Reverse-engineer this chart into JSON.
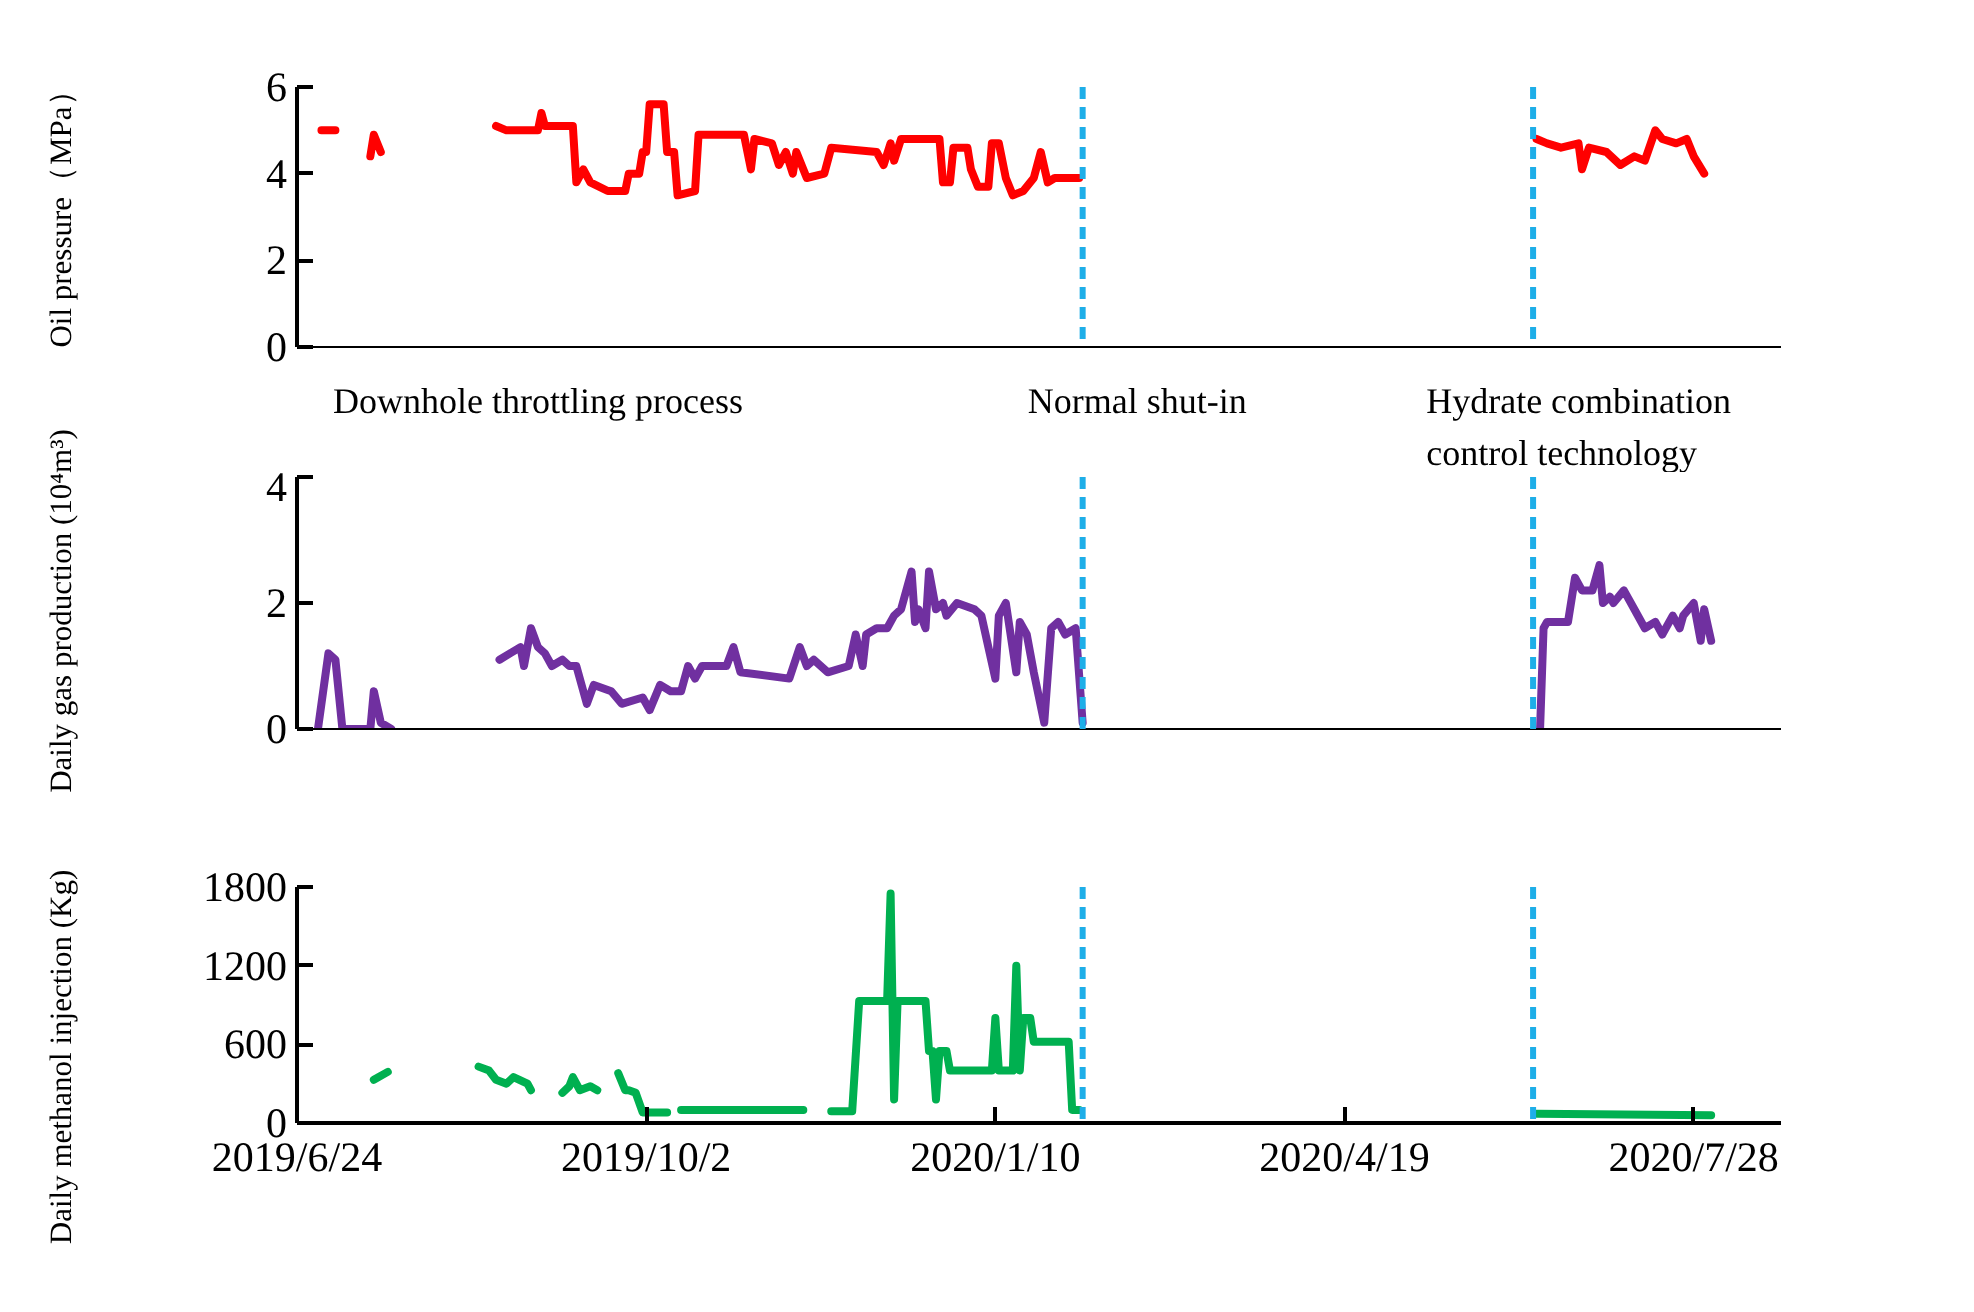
{
  "chart_data": [
    {
      "type": "line",
      "ylabel": "Oil pressure（MPa）",
      "xlim": [
        "2019-06-24",
        "2020-08-22"
      ],
      "ylim": [
        0,
        6
      ],
      "yticks": [
        0,
        2,
        4,
        6
      ],
      "tick_labels": "y",
      "ref_lines": [
        {
          "axis": "x",
          "value": "2020-02-04",
          "color": "#1eaee8",
          "line_style": "dashed"
        },
        {
          "axis": "x",
          "value": "2020-06-12",
          "color": "#1eaee8",
          "line_style": "dashed"
        }
      ],
      "annotations": [
        "Downhole throttling process",
        "Normal shut-in",
        "Hydrate combination control technology"
      ],
      "series": [
        {
          "color": "#ff0000",
          "x": [
            "2019-07-01",
            "2019-07-05",
            "2019-07-09",
            "2019-07-15",
            "2019-07-16",
            "2019-07-18",
            "2019-08-03",
            "2019-08-20",
            "2019-08-23",
            "2019-09-01",
            "2019-09-02",
            "2019-09-03",
            "2019-09-11",
            "2019-09-12",
            "2019-09-14",
            "2019-09-16",
            "2019-09-21",
            "2019-09-26",
            "2019-09-27",
            "2019-09-30",
            "2019-10-01",
            "2019-10-02",
            "2019-10-03",
            "2019-10-07",
            "2019-10-08",
            "2019-10-10",
            "2019-10-11",
            "2019-10-16",
            "2019-10-17",
            "2019-10-30",
            "2019-11-01",
            "2019-11-02",
            "2019-11-07",
            "2019-11-09",
            "2019-11-11",
            "2019-11-13",
            "2019-11-14",
            "2019-11-17",
            "2019-11-22",
            "2019-11-24",
            "2019-12-07",
            "2019-12-09",
            "2019-12-11",
            "2019-12-12",
            "2019-12-14",
            "2019-12-25",
            "2019-12-26",
            "2019-12-28",
            "2019-12-29",
            "2020-01-02",
            "2020-01-03",
            "2020-01-05",
            "2020-01-08",
            "2020-01-09",
            "2020-01-11",
            "2020-01-13",
            "2020-01-15",
            "2020-01-18",
            "2020-01-21",
            "2020-01-23",
            "2020-01-25",
            "2020-01-27",
            "2020-02-03",
            "2020-04-19",
            "2020-06-13",
            "2020-06-16",
            "2020-06-20",
            "2020-06-25",
            "2020-06-26",
            "2020-06-28",
            "2020-07-03",
            "2020-07-07",
            "2020-07-11",
            "2020-07-14",
            "2020-07-17",
            "2020-07-19",
            "2020-07-23",
            "2020-07-26",
            "2020-07-28",
            "2020-07-31"
          ],
          "values": [
            5.0,
            5.0,
            null,
            4.4,
            4.9,
            4.5,
            null,
            5.1,
            5.0,
            5.0,
            5.4,
            5.1,
            5.1,
            3.8,
            4.1,
            3.8,
            3.6,
            3.6,
            4.0,
            4.0,
            4.5,
            4.5,
            5.6,
            5.6,
            4.5,
            4.5,
            3.5,
            3.6,
            4.9,
            4.9,
            4.1,
            4.8,
            4.7,
            4.2,
            4.5,
            4.0,
            4.5,
            3.9,
            4.0,
            4.6,
            4.5,
            4.2,
            4.7,
            4.3,
            4.8,
            4.8,
            3.8,
            3.8,
            4.6,
            4.6,
            4.1,
            3.7,
            3.7,
            4.7,
            4.7,
            3.9,
            3.5,
            3.6,
            3.9,
            4.5,
            3.8,
            3.9,
            3.9,
            null,
            4.8,
            4.7,
            4.6,
            4.7,
            4.1,
            4.6,
            4.5,
            4.2,
            4.4,
            4.3,
            5.0,
            4.8,
            4.7,
            4.8,
            4.4,
            4.0
          ]
        }
      ]
    },
    {
      "type": "line",
      "ylabel": "Daily gas production (10⁴m³)",
      "xlim": [
        "2019-06-24",
        "2020-08-22"
      ],
      "ylim": [
        0,
        4
      ],
      "yticks": [
        0,
        2,
        4
      ],
      "tick_labels": "y",
      "ref_lines": [
        {
          "axis": "x",
          "value": "2020-02-04",
          "color": "#1eaee8",
          "line_style": "dashed"
        },
        {
          "axis": "x",
          "value": "2020-06-12",
          "color": "#1eaee8",
          "line_style": "dashed"
        }
      ],
      "series": [
        {
          "color": "#7030a0",
          "x": [
            "2019-06-30",
            "2019-07-03",
            "2019-07-05",
            "2019-07-07",
            "2019-07-15",
            "2019-07-16",
            "2019-07-18",
            "2019-07-21",
            "2019-08-03",
            "2019-08-21",
            "2019-08-24",
            "2019-08-27",
            "2019-08-28",
            "2019-08-30",
            "2019-09-01",
            "2019-09-03",
            "2019-09-05",
            "2019-09-08",
            "2019-09-10",
            "2019-09-12",
            "2019-09-15",
            "2019-09-17",
            "2019-09-22",
            "2019-09-25",
            "2019-10-01",
            "2019-10-03",
            "2019-10-06",
            "2019-10-09",
            "2019-10-12",
            "2019-10-14",
            "2019-10-16",
            "2019-10-18",
            "2019-10-25",
            "2019-10-27",
            "2019-10-29",
            "2019-11-12",
            "2019-11-15",
            "2019-11-17",
            "2019-11-19",
            "2019-11-23",
            "2019-11-29",
            "2019-12-01",
            "2019-12-03",
            "2019-12-04",
            "2019-12-07",
            "2019-12-10",
            "2019-12-12",
            "2019-12-14",
            "2019-12-17",
            "2019-12-18",
            "2019-12-19",
            "2019-12-21",
            "2019-12-22",
            "2019-12-24",
            "2019-12-26",
            "2019-12-27",
            "2019-12-30",
            "2020-01-04",
            "2020-01-06",
            "2020-01-08",
            "2020-01-10",
            "2020-01-11",
            "2020-01-13",
            "2020-01-16",
            "2020-01-17",
            "2020-01-19",
            "2020-01-21",
            "2020-01-24",
            "2020-01-26",
            "2020-01-28",
            "2020-01-30",
            "2020-02-02",
            "2020-02-04",
            "2020-04-19",
            "2020-06-14",
            "2020-06-15",
            "2020-06-16",
            "2020-06-22",
            "2020-06-24",
            "2020-06-26",
            "2020-06-29",
            "2020-07-01",
            "2020-07-02",
            "2020-07-04",
            "2020-07-05",
            "2020-07-08",
            "2020-07-11",
            "2020-07-14",
            "2020-07-17",
            "2020-07-19",
            "2020-07-22",
            "2020-07-24",
            "2020-07-25",
            "2020-07-28",
            "2020-07-30",
            "2020-07-31",
            "2020-08-02"
          ],
          "values": [
            0,
            1.2,
            1.1,
            0,
            0,
            0.6,
            0.1,
            0,
            null,
            1.1,
            1.2,
            1.3,
            1.0,
            1.6,
            1.3,
            1.2,
            1.0,
            1.1,
            1.0,
            1.0,
            0.4,
            0.7,
            0.6,
            0.4,
            0.5,
            0.3,
            0.7,
            0.6,
            0.6,
            1.0,
            0.8,
            1.0,
            1.0,
            1.3,
            0.9,
            0.8,
            1.3,
            1.0,
            1.1,
            0.9,
            1.0,
            1.5,
            1.0,
            1.5,
            1.6,
            1.6,
            1.8,
            1.9,
            2.5,
            1.7,
            1.9,
            1.6,
            2.5,
            1.9,
            2.0,
            1.8,
            2.0,
            1.9,
            1.8,
            1.3,
            0.8,
            1.8,
            2.0,
            0.9,
            1.7,
            1.5,
            0.9,
            0.1,
            1.6,
            1.7,
            1.5,
            1.6,
            0.1,
            null,
            0,
            1.6,
            1.7,
            1.7,
            2.4,
            2.2,
            2.2,
            2.6,
            2.0,
            2.1,
            2.0,
            2.2,
            1.9,
            1.6,
            1.7,
            1.5,
            1.8,
            1.6,
            1.8,
            2.0,
            1.4,
            1.9,
            1.4
          ]
        }
      ]
    },
    {
      "type": "line",
      "ylabel": "Daily methanol injection (Kg)",
      "xlim": [
        "2019-06-24",
        "2020-08-22"
      ],
      "ylim": [
        0,
        1800
      ],
      "yticks": [
        0,
        600,
        1200,
        1800
      ],
      "xticks": [
        {
          "value": "2019-06-24",
          "label": "2019/6/24"
        },
        {
          "value": "2019-10-02",
          "label": "2019/10/2"
        },
        {
          "value": "2020-01-10",
          "label": "2020/1/10"
        },
        {
          "value": "2020-04-19",
          "label": "2020/4/19"
        },
        {
          "value": "2020-07-28",
          "label": "2020/7/28"
        }
      ],
      "ref_lines": [
        {
          "axis": "x",
          "value": "2020-02-04",
          "color": "#1eaee8",
          "line_style": "dashed"
        },
        {
          "axis": "x",
          "value": "2020-06-12",
          "color": "#1eaee8",
          "line_style": "dashed"
        }
      ],
      "series": [
        {
          "color": "#00b050",
          "x": [
            "2019-07-16",
            "2019-07-20",
            "2019-08-03",
            "2019-08-15",
            "2019-08-18",
            "2019-08-20",
            "2019-08-23",
            "2019-08-25",
            "2019-08-29",
            "2019-08-30",
            "2019-09-02",
            "2019-09-08",
            "2019-09-10",
            "2019-09-11",
            "2019-09-13",
            "2019-09-16",
            "2019-09-18",
            "2019-09-21",
            "2019-09-24",
            "2019-09-26",
            "2019-09-27",
            "2019-09-29",
            "2019-10-01",
            "2019-10-08",
            "2019-10-10",
            "2019-10-12",
            "2019-11-16",
            "2019-11-20",
            "2019-11-24",
            "2019-11-30",
            "2019-12-02",
            "2019-12-10",
            "2019-12-11",
            "2019-12-12",
            "2019-12-13",
            "2019-12-21",
            "2019-12-22",
            "2019-12-23",
            "2019-12-24",
            "2019-12-25",
            "2019-12-27",
            "2019-12-28",
            "2020-01-09",
            "2020-01-10",
            "2020-01-11",
            "2020-01-15",
            "2020-01-16",
            "2020-01-17",
            "2020-01-18",
            "2020-01-20",
            "2020-01-21",
            "2020-01-31",
            "2020-02-01",
            "2020-02-03",
            "2020-04-19",
            "2020-06-13",
            "2020-08-02"
          ],
          "values": [
            330,
            390,
            null,
            430,
            400,
            330,
            300,
            350,
            300,
            250,
            null,
            230,
            280,
            350,
            250,
            280,
            250,
            null,
            380,
            250,
            250,
            230,
            80,
            80,
            null,
            100,
            100,
            null,
            90,
            90,
            930,
            930,
            1750,
            180,
            930,
            930,
            550,
            550,
            180,
            550,
            550,
            400,
            400,
            800,
            400,
            400,
            1200,
            400,
            800,
            800,
            620,
            620,
            100,
            100,
            null,
            70,
            60
          ]
        }
      ]
    }
  ]
}
